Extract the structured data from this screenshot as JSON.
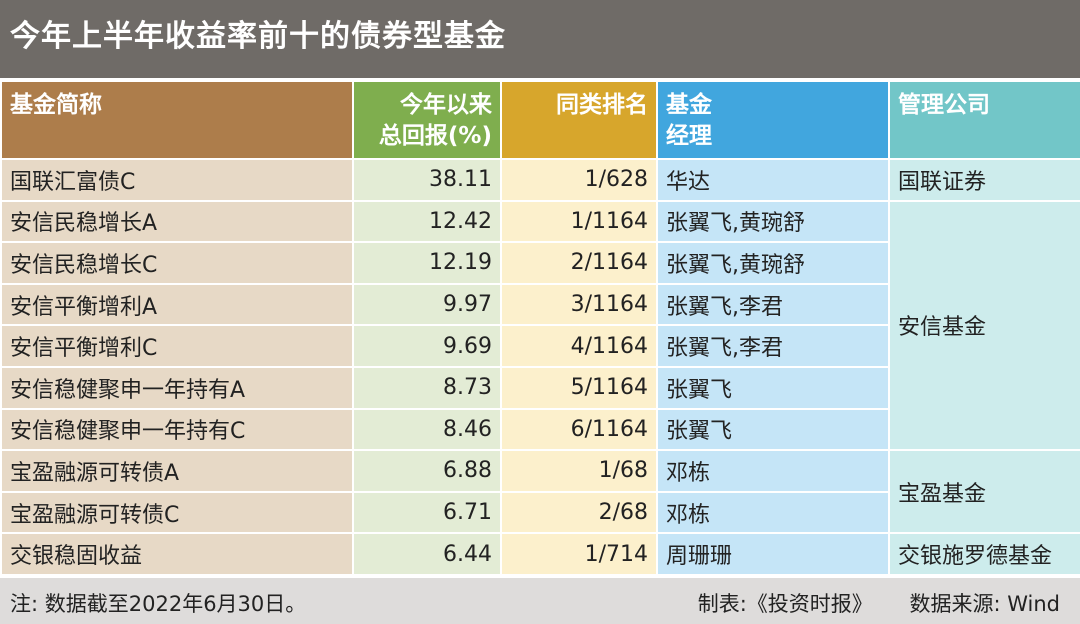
{
  "title": "今年上半年收益率前十的债券型基金",
  "headers": {
    "name": "基金简称",
    "return_line1": "今年以来",
    "return_line2": "总回报(%)",
    "rank": "同类排名",
    "manager_line1": "基金",
    "manager_line2": "经理",
    "company": "管理公司"
  },
  "rows": [
    {
      "name": "国联汇富债C",
      "return": "38.11",
      "rank": "1/628",
      "manager": "华达"
    },
    {
      "name": "安信民稳增长A",
      "return": "12.42",
      "rank": "1/1164",
      "manager": "张翼飞,黄琬舒"
    },
    {
      "name": "安信民稳增长C",
      "return": "12.19",
      "rank": "2/1164",
      "manager": "张翼飞,黄琬舒"
    },
    {
      "name": "安信平衡增利A",
      "return": "9.97",
      "rank": "3/1164",
      "manager": "张翼飞,李君"
    },
    {
      "name": "安信平衡增利C",
      "return": "9.69",
      "rank": "4/1164",
      "manager": "张翼飞,李君"
    },
    {
      "name": "安信稳健聚申一年持有A",
      "return": "8.73",
      "rank": "5/1164",
      "manager": "张翼飞"
    },
    {
      "name": "安信稳健聚申一年持有C",
      "return": "8.46",
      "rank": "6/1164",
      "manager": "张翼飞"
    },
    {
      "name": "宝盈融源可转债A",
      "return": "6.88",
      "rank": "1/68",
      "manager": "邓栋"
    },
    {
      "name": "宝盈融源可转债C",
      "return": "6.71",
      "rank": "2/68",
      "manager": "邓栋"
    },
    {
      "name": "交银稳固收益",
      "return": "6.44",
      "rank": "1/714",
      "manager": "周珊珊"
    }
  ],
  "companies": [
    "国联证券",
    "安信基金",
    "宝盈基金",
    "交银施罗德基金"
  ],
  "footer": {
    "note": "注: 数据截至2022年6月30日。",
    "made_by": "制表:《投资时报》",
    "source": "数据来源: Wind"
  }
}
